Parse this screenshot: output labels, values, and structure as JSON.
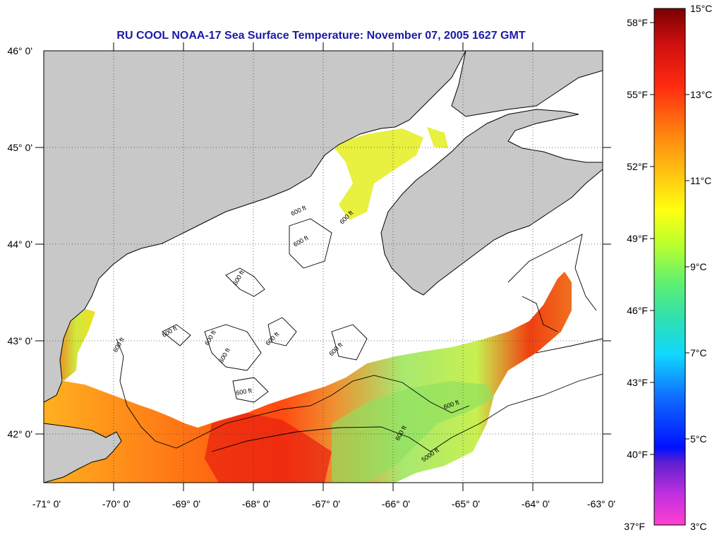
{
  "title": "RU COOL  NOAA-17  Sea Surface Temperature:  November 07, 2005 1627 GMT",
  "map": {
    "lon_ticks": [
      "-71° 0'",
      "-70° 0'",
      "-69° 0'",
      "-68° 0'",
      "-67° 0'",
      "-66° 0'",
      "-65° 0'",
      "-64° 0'",
      "-63° 0'"
    ],
    "lat_ticks": [
      "46° 0'",
      "45° 0'",
      "44° 0'",
      "43° 0'",
      "42° 0'"
    ],
    "contour_labels": [
      "600 ft",
      "600 ft",
      "600 ft",
      "600 ft",
      "600 ft",
      "600 ft",
      "600 ft",
      "600 ft",
      "600 ft",
      "600 ft",
      "600 ft",
      "600 ft",
      "600 ft",
      "5000 ft"
    ],
    "colors": {
      "land": "#c8c8c8",
      "sea_nodata": "#ffffff",
      "warm": "#e83010",
      "cool": "#8ee060"
    }
  },
  "colorbar": {
    "celsius": [
      "15°C",
      "13°C",
      "11°C",
      "9°C",
      "7°C",
      "5°C",
      "3°C"
    ],
    "fahrenheit": [
      "58°F",
      "55°F",
      "52°F",
      "49°F",
      "46°F",
      "43°F",
      "40°F",
      "37°F"
    ]
  }
}
